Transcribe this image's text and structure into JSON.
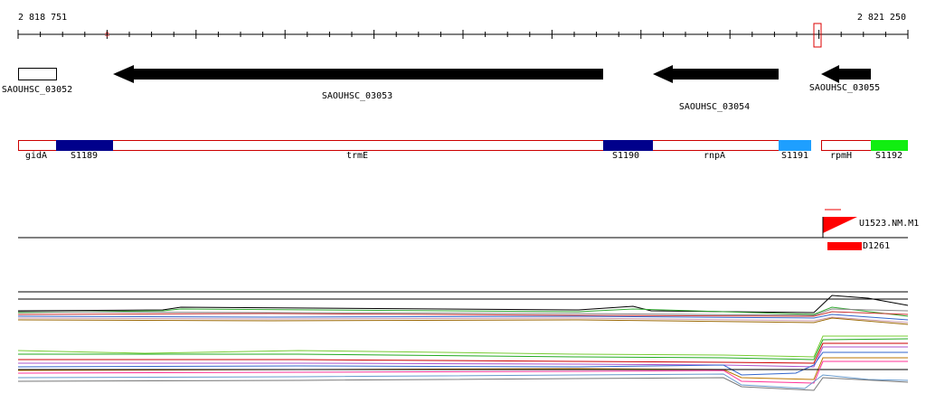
{
  "ruler": {
    "start": "2 818 751",
    "end": "2 821 250"
  },
  "genes": [
    {
      "label": "SAOUHSC_03052"
    },
    {
      "label": "SAOUHSC_03053"
    },
    {
      "label": "SAOUHSC_03054"
    },
    {
      "label": "SAOUHSC_03055"
    }
  ],
  "segments": [
    {
      "label": "gidA"
    },
    {
      "label": "S1189"
    },
    {
      "label": "trmE"
    },
    {
      "label": "S1190"
    },
    {
      "label": "rnpA"
    },
    {
      "label": "S1191"
    },
    {
      "label": "rpmH"
    },
    {
      "label": "S1192"
    }
  ],
  "features": [
    {
      "label": "U1523.NM.M1"
    },
    {
      "label": "D1261"
    }
  ]
}
